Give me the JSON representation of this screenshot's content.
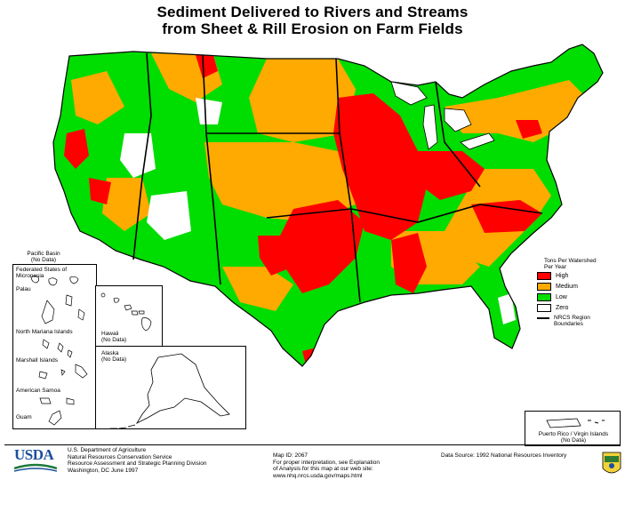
{
  "title": {
    "line1": "Sediment Delivered to Rivers and Streams",
    "line2": "from Sheet & Rill Erosion on Farm Fields"
  },
  "colors": {
    "high": "#ff0000",
    "medium": "#ffaa00",
    "low": "#00dd00",
    "zero": "#ffffff",
    "boundary": "#000000"
  },
  "legend": {
    "heading_line1": "Tons Per Watershed",
    "heading_line2": "Per Year",
    "items": [
      {
        "label": "High",
        "color": "#ff0000"
      },
      {
        "label": "Medium",
        "color": "#ffaa00"
      },
      {
        "label": "Low",
        "color": "#00dd00"
      },
      {
        "label": "Zero",
        "color": "#ffffff"
      }
    ],
    "boundary_line1": "NRCS Region",
    "boundary_line2": "Boundaries"
  },
  "insets": {
    "pacific_label_line1": "Pacific Basin",
    "pacific_label_line2": "(No Data)",
    "micronesia": "Federated States of Micronesia",
    "palau": "Palau",
    "northern_mariana": "North Mariana Islands",
    "marshall": "Marshall Islands",
    "american_samoa": "American Samoa",
    "guam": "Guam",
    "hawaii_line1": "Hawaii",
    "hawaii_line2": "(No Data)",
    "alaska_line1": "Alaska",
    "alaska_line2": "(No Data)",
    "puerto_rico_line1": "Puerto Rico / Virgin Islands",
    "puerto_rico_line2": "(No Data)"
  },
  "footer": {
    "usda_logo": "USDA",
    "agency_lines": [
      "U.S. Department of Agriculture",
      "Natural Resources Conservation Service",
      "Resource Assessment and Strategic Planning Division",
      "Washington, DC     June 1997"
    ],
    "map_id": "Map ID: 2067",
    "interpretation_lines": [
      "For proper interpretation, see Explanation",
      "of Analysis for this map at our web site:",
      "www.nhq.nrcs.usda.gov/maps.html"
    ],
    "data_source": "Data Source:   1992 National Resources Inventory"
  }
}
